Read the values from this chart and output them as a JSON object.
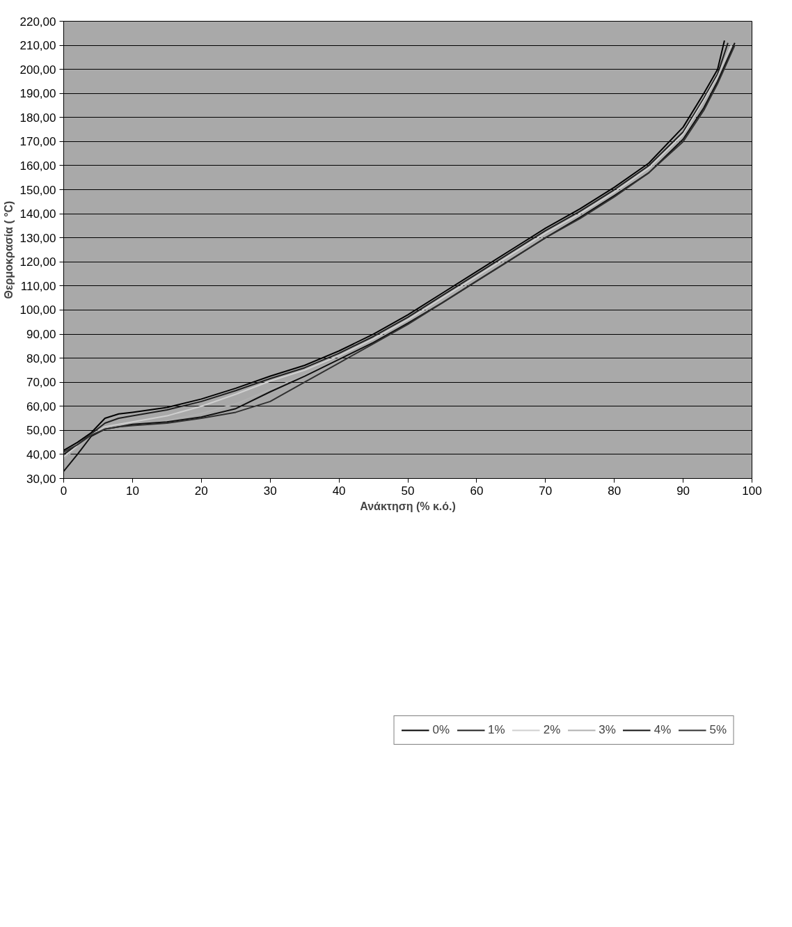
{
  "chart_data": {
    "type": "line",
    "xlabel": "Ανάκτηση (% κ.ό.)",
    "ylabel": "Θερμοκρασία ( °C)",
    "xlim": [
      0,
      100
    ],
    "xticks": [
      0,
      10,
      20,
      30,
      40,
      50,
      60,
      70,
      80,
      90,
      100
    ],
    "ylim": [
      30,
      220
    ],
    "yticks": [
      {
        "value": 30,
        "label": "30,00"
      },
      {
        "value": 40,
        "label": "40,00"
      },
      {
        "value": 50,
        "label": "50,00"
      },
      {
        "value": 60,
        "label": "60,00"
      },
      {
        "value": 70,
        "label": "70,00"
      },
      {
        "value": 80,
        "label": "80,00"
      },
      {
        "value": 90,
        "label": "90,00"
      },
      {
        "value": 100,
        "label": "100,00"
      },
      {
        "value": 110,
        "label": "110,00"
      },
      {
        "value": 120,
        "label": "120,00"
      },
      {
        "value": 130,
        "label": "130,00"
      },
      {
        "value": 140,
        "label": "140,00"
      },
      {
        "value": 150,
        "label": "150,00"
      },
      {
        "value": 160,
        "label": "160,00"
      },
      {
        "value": 170,
        "label": "170,00"
      },
      {
        "value": 180,
        "label": "180,00"
      },
      {
        "value": 190,
        "label": "190,00"
      },
      {
        "value": 200,
        "label": "200,00"
      },
      {
        "value": 210,
        "label": "210,00"
      },
      {
        "value": 220,
        "label": "220,00"
      }
    ],
    "grid": "y",
    "legend": "bottom",
    "marker": "none",
    "line_style": "solid",
    "series": [
      {
        "name": "0%",
        "color": "#000000",
        "x": [
          0,
          2,
          4,
          6,
          8,
          10,
          15,
          20,
          25,
          30,
          35,
          40,
          45,
          50,
          55,
          60,
          65,
          70,
          75,
          80,
          85,
          90,
          93,
          95,
          96
        ],
        "values": [
          41.7,
          45,
          49,
          55,
          56.8,
          57.5,
          59.5,
          63,
          67.5,
          72.5,
          77,
          83,
          90,
          98,
          107,
          116,
          125,
          134,
          142,
          151,
          161,
          176,
          190,
          200,
          212
        ]
      },
      {
        "name": "1%",
        "color": "#202020",
        "x": [
          0,
          2,
          4,
          6,
          8,
          10,
          15,
          20,
          25,
          30,
          35,
          40,
          45,
          50,
          55,
          60,
          65,
          70,
          75,
          80,
          85,
          90,
          93,
          95,
          96.5
        ],
        "values": [
          40,
          44,
          48.5,
          53,
          55,
          56,
          58.5,
          62,
          66.5,
          71.5,
          76,
          82,
          89,
          97,
          106,
          115,
          124,
          133,
          141,
          150,
          160,
          174,
          188,
          198,
          211
        ]
      },
      {
        "name": "2%",
        "color": "#d0d0d0",
        "x": [
          0,
          2,
          4,
          6,
          8,
          10,
          15,
          20,
          25,
          30,
          35,
          40,
          45,
          50,
          55,
          60,
          65,
          70,
          75,
          80,
          85,
          90,
          93,
          95,
          97
        ],
        "values": [
          39,
          43.5,
          48,
          51.5,
          52.5,
          53.5,
          56,
          60,
          65,
          70.5,
          75,
          81,
          88,
          96,
          105,
          114,
          123,
          132,
          140,
          149,
          159,
          173,
          187,
          197,
          210
        ]
      },
      {
        "name": "3%",
        "color": "#b0b0b0",
        "x": [
          0,
          2,
          4,
          6,
          8,
          10,
          15,
          20,
          25,
          30,
          35,
          40,
          45,
          50,
          55,
          60,
          65,
          70,
          75,
          80,
          85,
          90,
          93,
          95,
          97
        ],
        "values": [
          38,
          43,
          48,
          51,
          52,
          52.5,
          54,
          57,
          61,
          67,
          73,
          80,
          87,
          95,
          104,
          113,
          122,
          131,
          139,
          148,
          158,
          172,
          186,
          196,
          209
        ]
      },
      {
        "name": "4%",
        "color": "#101010",
        "x": [
          0,
          2,
          4,
          6,
          8,
          10,
          15,
          20,
          25,
          30,
          35,
          40,
          45,
          50,
          55,
          60,
          65,
          70,
          75,
          80,
          85,
          90,
          93,
          95,
          97.5
        ],
        "values": [
          33,
          40,
          47.5,
          50.5,
          51.5,
          52.5,
          53.5,
          55.5,
          59,
          66,
          72.5,
          79.5,
          86.5,
          94.5,
          103,
          112,
          121,
          130,
          138.5,
          147.5,
          157,
          171,
          184,
          195,
          211
        ]
      },
      {
        "name": "5%",
        "color": "#303030",
        "x": [
          0,
          2,
          4,
          6,
          8,
          10,
          15,
          20,
          25,
          30,
          35,
          40,
          45,
          50,
          55,
          60,
          65,
          70,
          75,
          80,
          85,
          90,
          93,
          95,
          97.5
        ],
        "values": [
          41,
          44,
          48,
          50.5,
          51.5,
          52,
          53,
          55,
          57.5,
          62,
          70,
          78,
          86,
          94,
          103,
          112,
          121,
          130,
          138,
          147,
          157,
          170,
          183,
          194,
          210
        ]
      }
    ]
  }
}
